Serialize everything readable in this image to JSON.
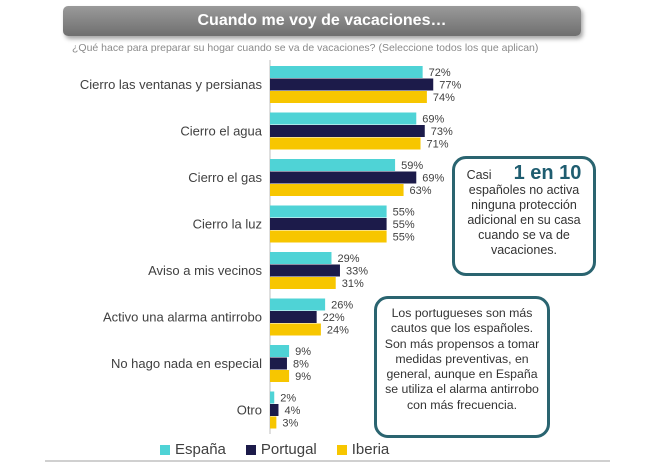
{
  "title": "Cuando me voy de vacaciones…",
  "subtitle": "¿Qué hace para preparar su hogar cuando se va de vacaciones? (Seleccione todos los que aplican)",
  "chart_data": {
    "type": "bar",
    "orientation": "horizontal",
    "categories": [
      "Cierro las ventanas y persianas",
      "Cierro el agua",
      "Cierro el gas",
      "Cierro la luz",
      "Aviso a mis vecinos",
      "Activo una alarma antirrobo",
      "No hago nada en especial",
      "Otro"
    ],
    "series": [
      {
        "name": "España",
        "values": [
          72,
          69,
          59,
          55,
          29,
          26,
          9,
          2
        ],
        "labels": [
          "72%",
          "69%",
          "59%",
          "55%",
          "29%",
          "26%",
          "9%",
          "2%"
        ],
        "color": "#4fd3d6"
      },
      {
        "name": "Portugal",
        "values": [
          77,
          73,
          69,
          55,
          33,
          22,
          8,
          4
        ],
        "labels": [
          "77%",
          "73%",
          "69%",
          "55%",
          "33%",
          "22%",
          "8%",
          "4%"
        ],
        "color": "#1c1b4a"
      },
      {
        "name": "Iberia",
        "values": [
          74,
          71,
          63,
          55,
          31,
          24,
          9,
          3
        ],
        "labels": [
          "74%",
          "71%",
          "63%",
          "55%",
          "31%",
          "24%",
          "9%",
          "3%"
        ],
        "color": "#f7c600"
      }
    ],
    "xlim": [
      0,
      100
    ],
    "grid": false,
    "legend_position": "bottom"
  },
  "callouts": {
    "first": {
      "lead": "Casi",
      "highlight": "1 en 10",
      "body": "españoles no activa ninguna protección adicional en su casa cuando se va de vacaciones."
    },
    "second": {
      "body": "Los portugueses son más cautos que los españoles. Son más propensos a tomar medidas preventivas, en general, aunque en España se utiliza el alarma antirrobo con más frecuencia."
    }
  },
  "colors": {
    "callout_border": "#2a6470",
    "title_bar": "#7f7f7f"
  }
}
